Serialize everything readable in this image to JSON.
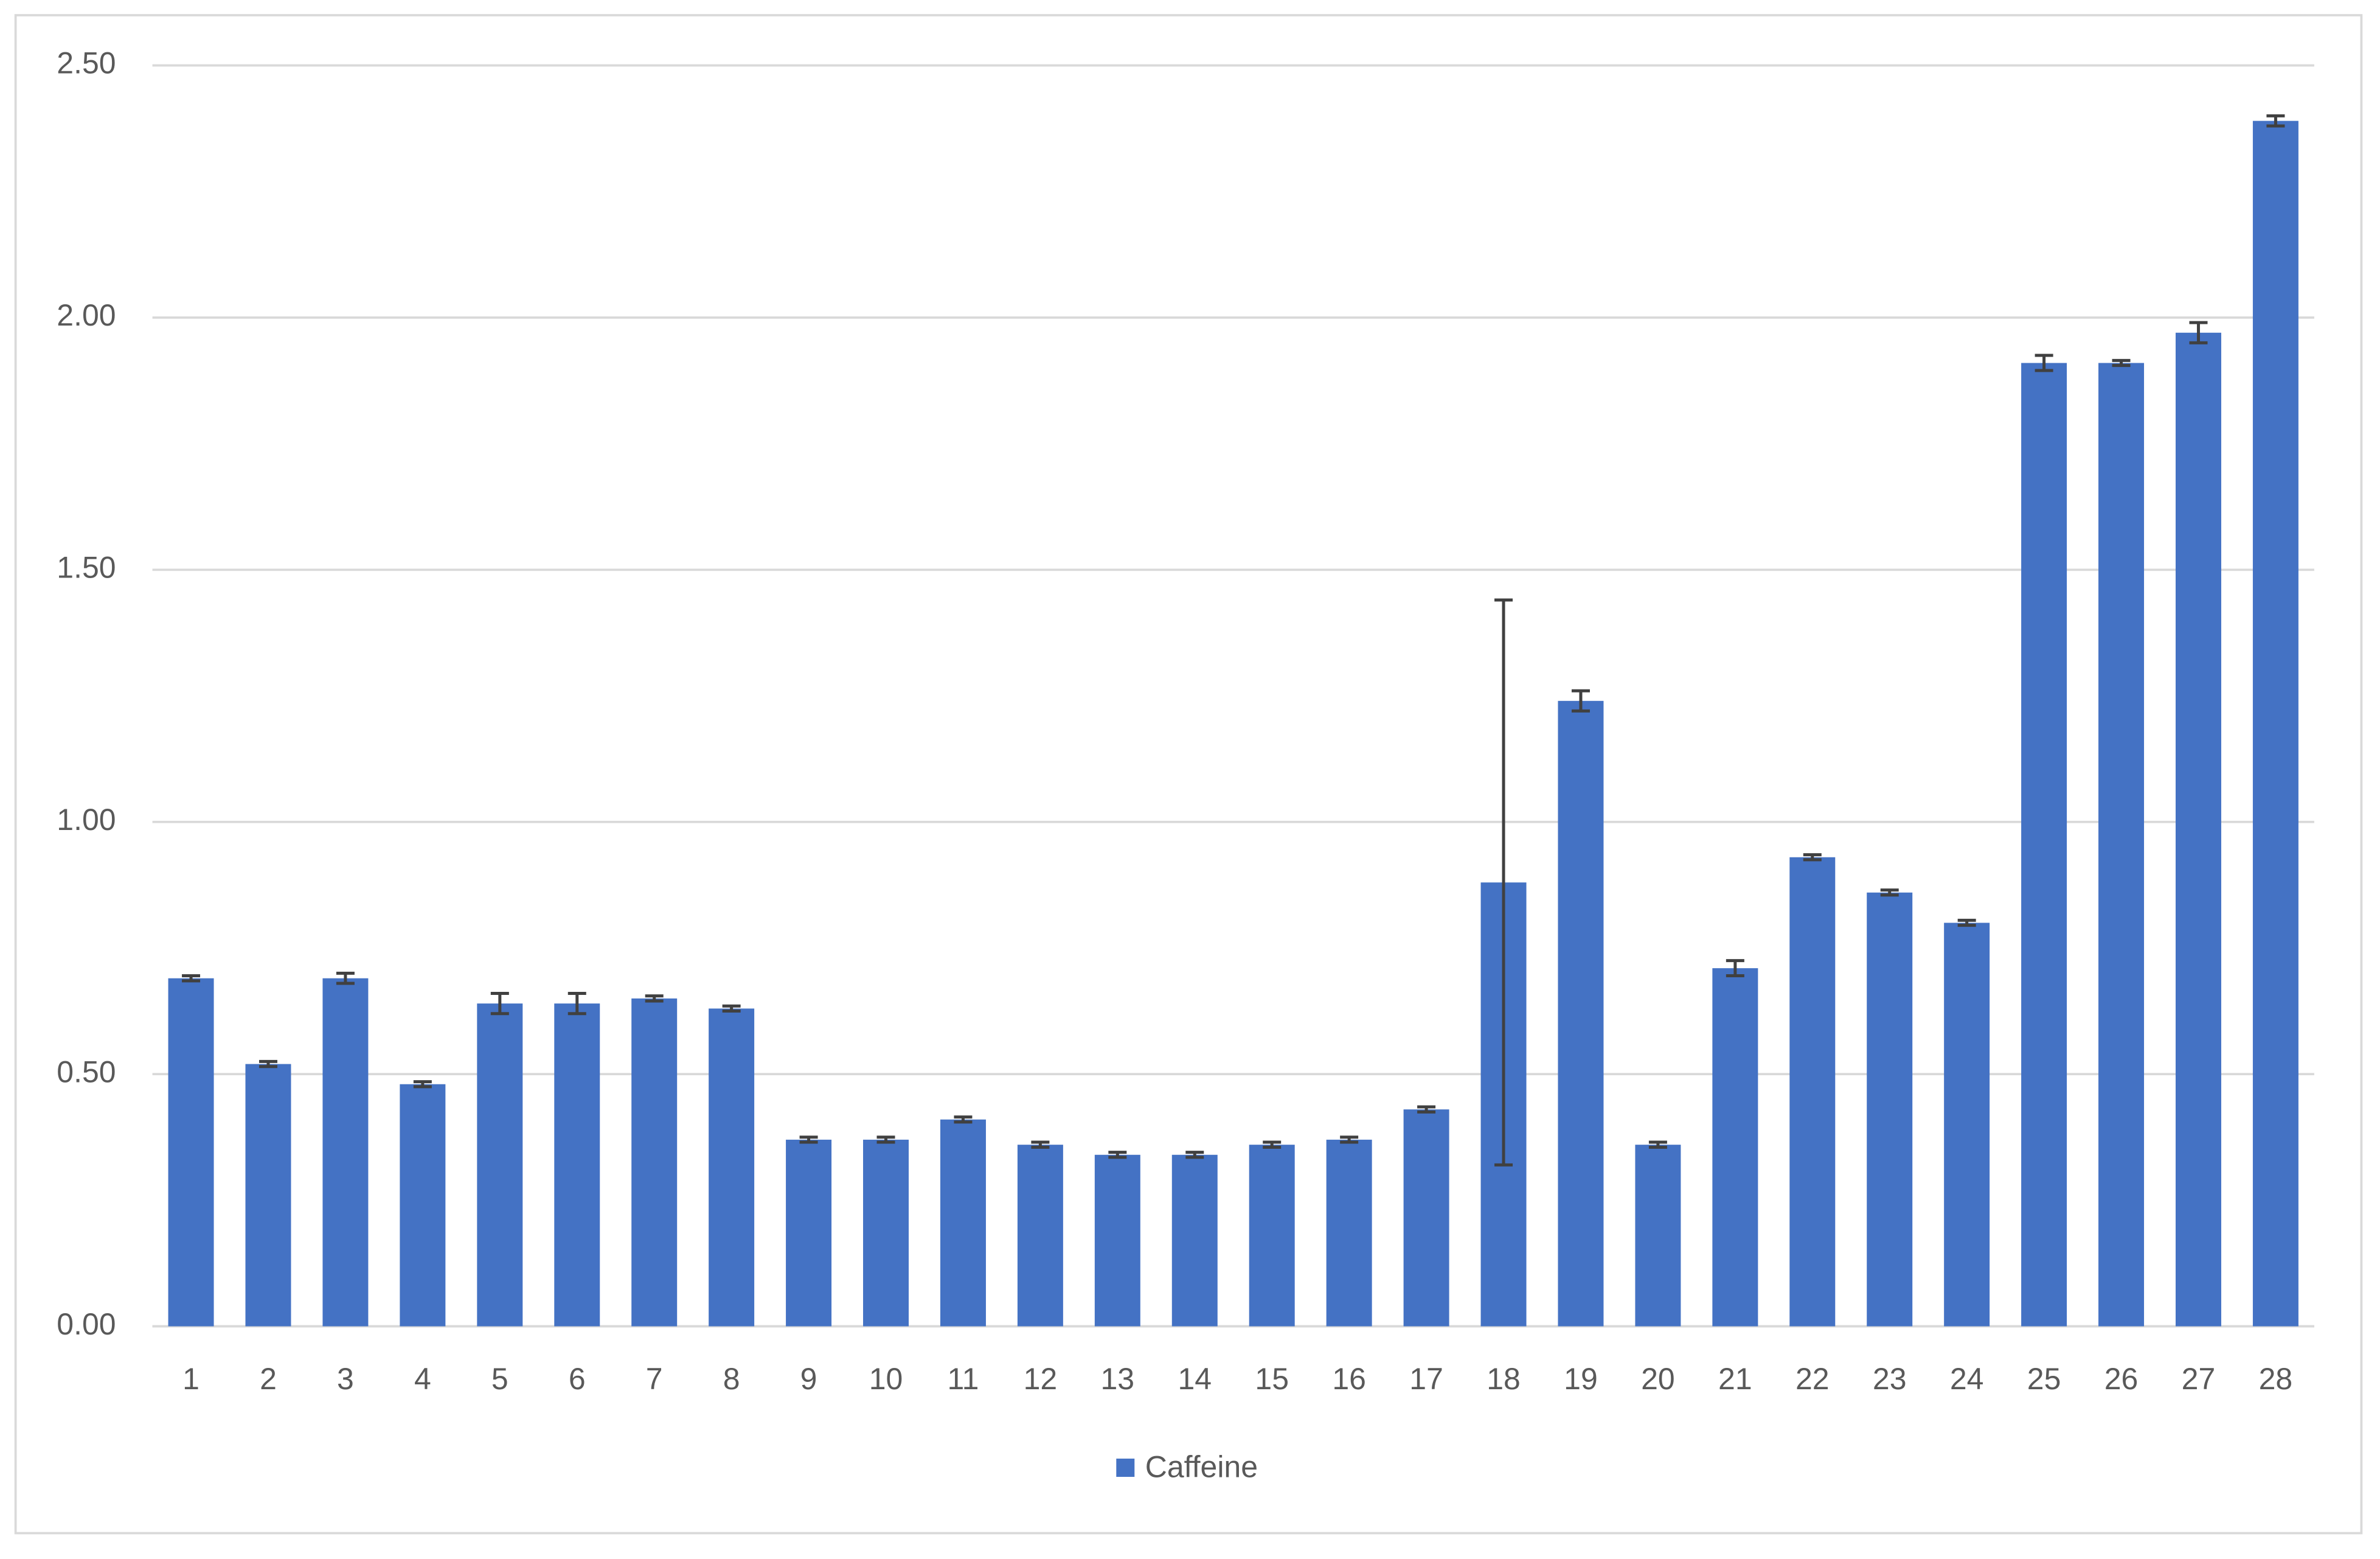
{
  "chart_data": {
    "type": "bar",
    "categories": [
      "1",
      "2",
      "3",
      "4",
      "5",
      "6",
      "7",
      "8",
      "9",
      "10",
      "11",
      "12",
      "13",
      "14",
      "15",
      "16",
      "17",
      "18",
      "19",
      "20",
      "21",
      "22",
      "23",
      "24",
      "25",
      "26",
      "27",
      "28"
    ],
    "series": [
      {
        "name": "Caffeine",
        "color": "#4472c4",
        "values": [
          0.69,
          0.52,
          0.69,
          0.48,
          0.64,
          0.64,
          0.65,
          0.63,
          0.37,
          0.37,
          0.41,
          0.36,
          0.34,
          0.34,
          0.36,
          0.37,
          0.43,
          0.88,
          1.24,
          0.36,
          0.71,
          0.93,
          0.86,
          0.8,
          1.91,
          1.91,
          1.97,
          2.39
        ],
        "errors": [
          0.005,
          0.005,
          0.01,
          0.005,
          0.02,
          0.02,
          0.005,
          0.005,
          0.005,
          0.005,
          0.005,
          0.005,
          0.005,
          0.005,
          0.005,
          0.005,
          0.005,
          0.56,
          0.02,
          0.005,
          0.015,
          0.005,
          0.005,
          0.005,
          0.015,
          0.005,
          0.02,
          0.01
        ]
      }
    ],
    "ylim": [
      0,
      2.5
    ],
    "yticks": [
      {
        "value": 0,
        "label": "0.00"
      },
      {
        "value": 0.5,
        "label": "0.50"
      },
      {
        "value": 1,
        "label": "1.00"
      },
      {
        "value": 1.5,
        "label": "1.50"
      },
      {
        "value": 2,
        "label": "2.00"
      },
      {
        "value": 2.5,
        "label": "2.50"
      }
    ],
    "grid": true,
    "legend": "bottom"
  }
}
